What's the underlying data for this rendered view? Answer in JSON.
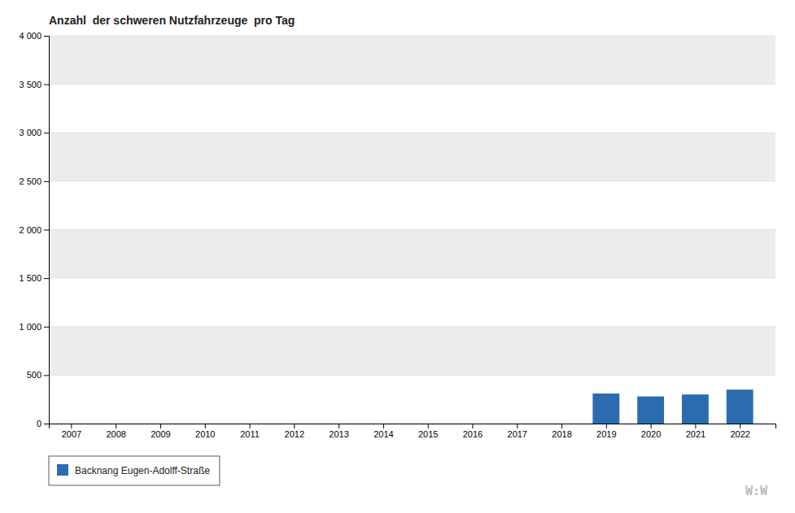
{
  "chart_data": {
    "type": "bar",
    "title": "Anzahl  der schweren Nutzfahrzeuge  pro Tag",
    "x": [
      2007,
      2008,
      2009,
      2010,
      2011,
      2012,
      2013,
      2014,
      2015,
      2016,
      2017,
      2018,
      2019,
      2020,
      2021,
      2022
    ],
    "series": [
      {
        "name": "Backnang Eugen-Adolff-Straße",
        "color": "#2B6CB0",
        "values": [
          0,
          0,
          0,
          0,
          0,
          0,
          0,
          0,
          0,
          0,
          0,
          0,
          310,
          280,
          300,
          350
        ]
      }
    ],
    "xlim": [
      2006.5,
      2022.8
    ],
    "xticks": [
      2007,
      2008,
      2009,
      2010,
      2011,
      2012,
      2013,
      2014,
      2015,
      2016,
      2017,
      2018,
      2019,
      2020,
      2021,
      2022
    ],
    "ylim": [
      0,
      4000
    ],
    "yticks": [
      0,
      500,
      {
        "value": 1000,
        "label": "1 000"
      },
      {
        "value": 1500,
        "label": "1 500"
      },
      {
        "value": 2000,
        "label": "2 000"
      },
      {
        "value": 2500,
        "label": "2 500"
      },
      {
        "value": 3000,
        "label": "3 000"
      },
      {
        "value": 3500,
        "label": "3 500"
      },
      {
        "value": 4000,
        "label": "4 000"
      }
    ],
    "annotations": [
      "W:W"
    ],
    "grid": true,
    "legend": "bottom"
  }
}
